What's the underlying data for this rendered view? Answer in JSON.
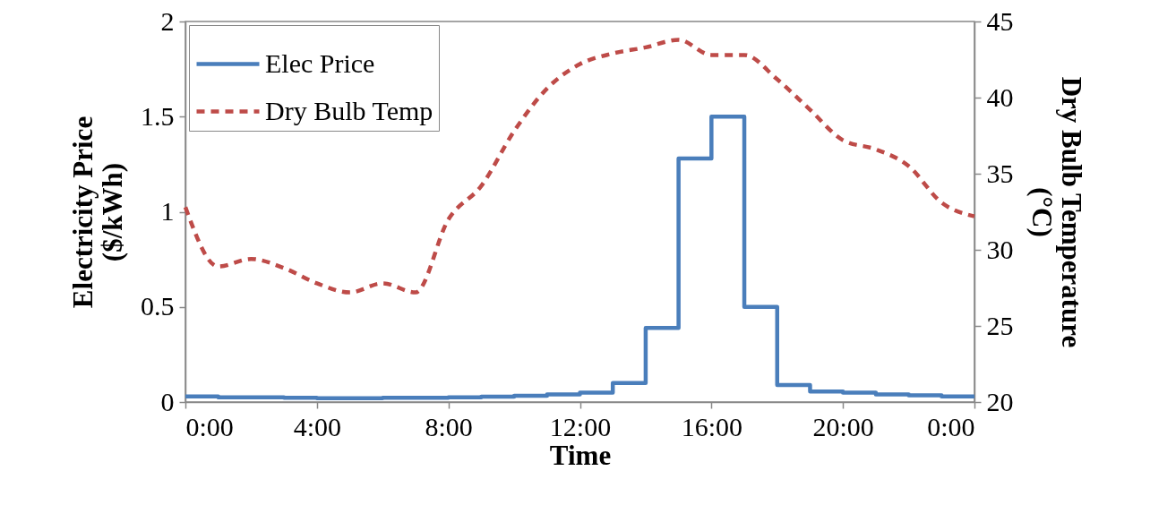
{
  "chart_data": {
    "type": "line",
    "xlabel": "Time",
    "ylabel": "Electricity Price ($/kWh)",
    "y2label": "Dry Bulb Temperature (°C)",
    "x": [
      0,
      1,
      2,
      3,
      4,
      5,
      6,
      7,
      8,
      9,
      10,
      11,
      12,
      13,
      14,
      15,
      16,
      17,
      18,
      19,
      20,
      21,
      22,
      23,
      24
    ],
    "series": [
      {
        "name": "Elec Price",
        "type": "step",
        "color": "#4a7ebb",
        "line_style": "solid",
        "values": [
          0.03,
          0.025,
          0.025,
          0.022,
          0.02,
          0.02,
          0.022,
          0.022,
          0.025,
          0.028,
          0.033,
          0.04,
          0.05,
          0.1,
          0.39,
          1.28,
          1.5,
          0.5,
          0.09,
          0.055,
          0.05,
          0.04,
          0.035,
          0.03,
          0.03
        ]
      },
      {
        "name": "Dry Bulb Temp",
        "type": "line",
        "axis": "y2",
        "color": "#be4b48",
        "line_style": "dashed",
        "values": [
          32.8,
          28.9,
          29.4,
          28.8,
          27.8,
          27.2,
          27.8,
          27.2,
          32.0,
          34.2,
          37.8,
          40.6,
          42.2,
          42.9,
          43.3,
          43.8,
          42.8,
          42.8,
          41.2,
          39.2,
          37.2,
          36.6,
          35.5,
          33.1,
          32.2
        ]
      }
    ],
    "xlim": [
      0,
      24
    ],
    "xticks": [
      {
        "value": 0,
        "label": "0:00"
      },
      {
        "value": 4,
        "label": "4:00"
      },
      {
        "value": 8,
        "label": "8:00"
      },
      {
        "value": 12,
        "label": "12:00"
      },
      {
        "value": 16,
        "label": "16:00"
      },
      {
        "value": 20,
        "label": "20:00"
      },
      {
        "value": 24,
        "label": "0:00"
      }
    ],
    "ylim": [
      0,
      2
    ],
    "yticks": [
      0,
      0.5,
      1,
      1.5,
      2
    ],
    "y2lim": [
      20,
      45
    ],
    "y2ticks": [
      20,
      25,
      30,
      35,
      40,
      45
    ],
    "grid": false,
    "legend": "top left",
    "marker": "none"
  }
}
